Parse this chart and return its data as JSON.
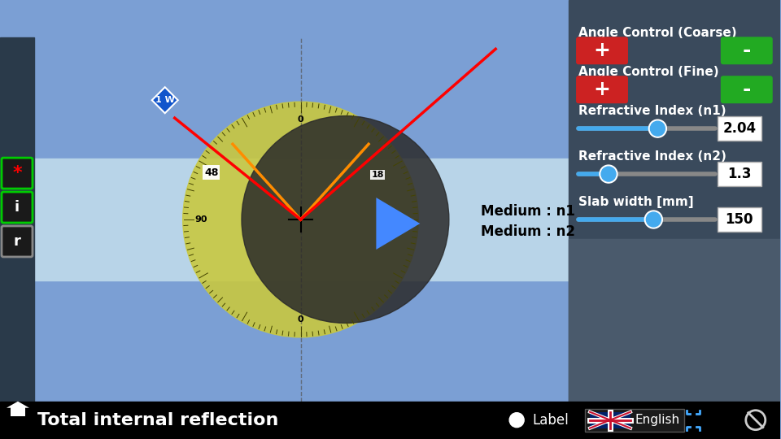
{
  "bg_upper": "#7b9fd4",
  "bg_medium_strip": "#b8d4e8",
  "panel_bg": "#3a4a5c",
  "panel_bg2": "#4a5a6c",
  "bottom_bar_color": "#000000",
  "title": "Total internal reflection",
  "title_color": "#ffffff",
  "title_fontsize": 16,
  "protractor_color": "#c8c840",
  "dark_circle_color": "#2a2a2a",
  "dark_circle_alpha": 0.85,
  "dashed_line_color": "#555555",
  "incident_ray_color": "#ff0000",
  "reflected_ray_color": "#ff0000",
  "orange_line_color": "#ff8c00",
  "angle_label_48": "48",
  "panel_title1": "Angle Control (Coarse)",
  "panel_title2": "Angle Control (Fine)",
  "panel_title3": "Refractive Index (n1)",
  "panel_title4": "Refractive Index (n2)",
  "panel_title5": "Slab width [mm]",
  "n1_value": "2.04",
  "n2_value": "1.3",
  "slab_value": "150",
  "medium_label1": "Medium : n1",
  "medium_label2": "Medium : n2",
  "play_button_color": "#4488ff",
  "left_panel_bg": "#2a3a4a",
  "laser_label": "1 W",
  "laser_box_color": "#1155cc"
}
